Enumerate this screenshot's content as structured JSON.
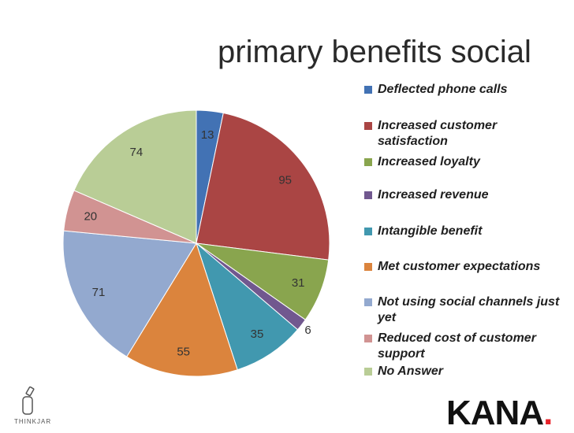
{
  "chart_data": {
    "type": "pie",
    "title": "primary benefits social",
    "series": [
      {
        "name": "Deflected phone calls",
        "value": 13,
        "color": "#4272B4"
      },
      {
        "name": "Increased customer satisfaction",
        "value": 95,
        "color": "#AA4544"
      },
      {
        "name": "Increased loyalty",
        "value": 31,
        "color": "#89A54E"
      },
      {
        "name": "Increased revenue",
        "value": 6,
        "color": "#71588F"
      },
      {
        "name": "Intangible benefit",
        "value": 35,
        "color": "#4198AF"
      },
      {
        "name": "Met customer expectations",
        "value": 55,
        "color": "#DB843D"
      },
      {
        "name": "Not using social channels just yet",
        "value": 71,
        "color": "#93A9CF"
      },
      {
        "name": "Reduced cost of customer support",
        "value": 20,
        "color": "#D19392"
      },
      {
        "name": "No Answer",
        "value": 74,
        "color": "#B9CD96"
      }
    ],
    "legend_position": "right"
  },
  "branding": {
    "thinkjar_label": "THINKJAR",
    "kana_label": "KANA",
    "kana_dot": ".",
    "thinkjar_icon": "jar-icon"
  }
}
